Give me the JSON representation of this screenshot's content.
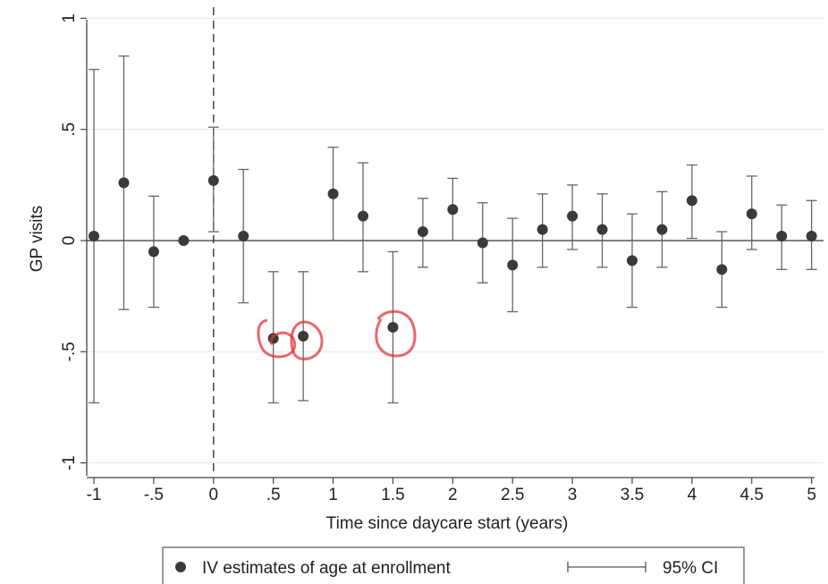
{
  "chart_data": {
    "type": "scatter",
    "title": "",
    "xlabel": "Time since daycare start (years)",
    "ylabel": "GP visits",
    "xlim": [
      -1.06,
      5.1
    ],
    "ylim": [
      -1.05,
      1.05
    ],
    "x_ticks": [
      -1,
      -0.5,
      0,
      0.5,
      1,
      1.5,
      2,
      2.5,
      3,
      3.5,
      4,
      4.5,
      5
    ],
    "x_tick_labels": [
      "-1",
      "-.5",
      "0",
      ".5",
      "1",
      "1.5",
      "2",
      "2.5",
      "3",
      "3.5",
      "4",
      "4.5",
      "5"
    ],
    "y_ticks": [
      -1,
      -0.5,
      0,
      0.5,
      1
    ],
    "y_tick_labels": [
      "-1",
      "-.5",
      "0",
      ".5",
      "1"
    ],
    "grid": true,
    "reference_lines": {
      "horizontal_at": 0,
      "vertical_dashed_at": 0
    },
    "legend": {
      "placement": "bottom",
      "entries": [
        {
          "marker": "dot",
          "label": "IV estimates of age at enrollment"
        },
        {
          "marker": "capped-line",
          "label": "95% CI"
        }
      ]
    },
    "colors": {
      "points": "#3a3a3a",
      "ci": "#666666",
      "grid": "#e6e6e6",
      "annotation": "#e0343a"
    },
    "series": [
      {
        "x": [
          -1,
          -0.75,
          -0.5,
          -0.25,
          0,
          0.25,
          0.5,
          0.75,
          1,
          1.25,
          1.5,
          1.75,
          2,
          2.25,
          2.5,
          2.75,
          3,
          3.25,
          3.5,
          3.75,
          4,
          4.25,
          4.5,
          4.75,
          5
        ],
        "y": [
          0.02,
          0.26,
          -0.05,
          0.0,
          0.27,
          0.02,
          -0.44,
          -0.43,
          0.21,
          0.11,
          -0.39,
          0.04,
          0.14,
          -0.01,
          -0.11,
          0.05,
          0.11,
          0.05,
          -0.09,
          0.05,
          0.18,
          -0.13,
          0.12,
          0.02,
          0.02
        ],
        "lower": [
          -0.73,
          -0.31,
          -0.3,
          null,
          0.04,
          -0.28,
          -0.73,
          -0.72,
          0.0,
          -0.14,
          -0.73,
          -0.12,
          0.0,
          -0.19,
          -0.32,
          -0.12,
          -0.04,
          -0.12,
          -0.3,
          -0.12,
          0.01,
          -0.3,
          -0.04,
          -0.13,
          -0.13
        ],
        "upper": [
          0.77,
          0.83,
          0.2,
          null,
          0.51,
          0.32,
          -0.14,
          -0.14,
          0.42,
          0.35,
          -0.05,
          0.19,
          0.28,
          0.17,
          0.1,
          0.21,
          0.25,
          0.21,
          0.12,
          0.22,
          0.34,
          0.04,
          0.29,
          0.16,
          0.18
        ]
      }
    ],
    "annotations": [
      {
        "type": "hand-drawn-circle",
        "x": 0.5,
        "y": -0.44
      },
      {
        "type": "hand-drawn-circle",
        "x": 0.75,
        "y": -0.43
      },
      {
        "type": "hand-drawn-circle",
        "x": 1.5,
        "y": -0.39
      }
    ]
  }
}
